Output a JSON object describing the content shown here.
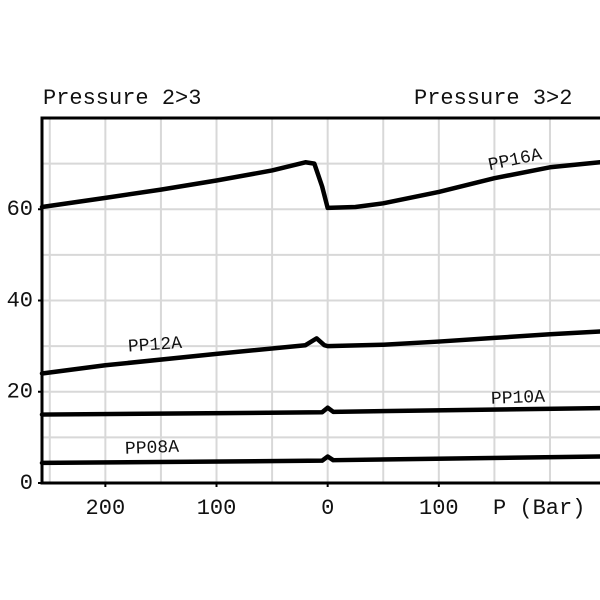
{
  "chart_data": {
    "type": "line",
    "titles": [
      "Pressure 2>3",
      "Pressure 3>2"
    ],
    "x_label": "P (Bar)",
    "xlim": [
      -257,
      245
    ],
    "xticks": [
      {
        "value": -200,
        "label": "200"
      },
      {
        "value": -100,
        "label": "100"
      },
      0,
      {
        "value": 100,
        "label": "100"
      }
    ],
    "xgrid": [
      -250,
      -200,
      -150,
      -100,
      -50,
      0,
      50,
      100,
      150,
      200
    ],
    "ylim": [
      0,
      80
    ],
    "yticks": [
      0,
      20,
      40,
      60
    ],
    "ygrid": [
      10,
      20,
      30,
      40,
      50,
      60,
      70
    ],
    "grid": true,
    "series": [
      {
        "name": "PP16A",
        "color": "#000000",
        "x": [
          -257,
          -200,
          -150,
          -100,
          -50,
          -20,
          -12,
          -5,
          0,
          25,
          50,
          100,
          150,
          200,
          245
        ],
        "values": [
          60.5,
          62.5,
          64.3,
          66.3,
          68.5,
          70.3,
          70,
          65,
          60.3,
          60.5,
          61.3,
          63.8,
          66.8,
          69.2,
          70.3
        ]
      },
      {
        "name": "PP12A",
        "color": "#000000",
        "x": [
          -257,
          -200,
          -100,
          -20,
          -10,
          -3,
          0,
          50,
          100,
          150,
          200,
          245
        ],
        "values": [
          24,
          25.8,
          28.3,
          30.2,
          31.7,
          30.2,
          30,
          30.3,
          31,
          31.8,
          32.6,
          33.2
        ]
      },
      {
        "name": "PP10A",
        "color": "#000000",
        "x": [
          -257,
          -5,
          0,
          5,
          245
        ],
        "values": [
          15,
          15.5,
          16.5,
          15.6,
          16.4
        ]
      },
      {
        "name": "PP08A",
        "color": "#000000",
        "x": [
          -257,
          -5,
          0,
          5,
          245
        ],
        "values": [
          4.4,
          4.9,
          5.8,
          5,
          5.8
        ]
      }
    ]
  }
}
